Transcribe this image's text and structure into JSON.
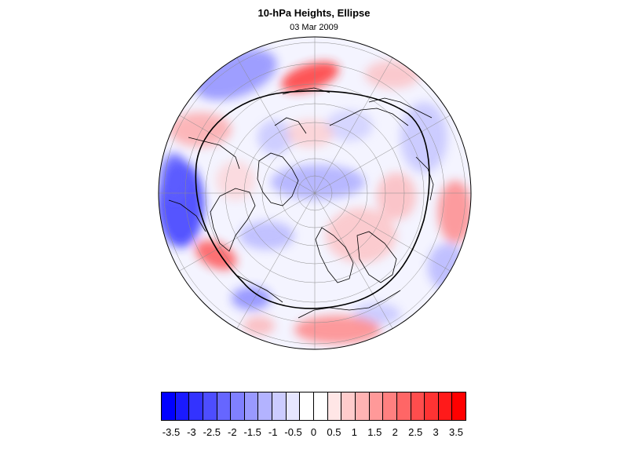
{
  "title": "10-hPa Heights, Ellipse",
  "subtitle": "03 Mar 2009",
  "colors": {
    "negative_max": "#0000ff",
    "neutral": "#ffffff",
    "positive_max": "#ff0000",
    "ellipse": "#000000",
    "coastline": "#000000",
    "graticule": "#8c8c8c"
  },
  "map": {
    "projection": "north-polar-stereographic",
    "features": [
      "coastlines",
      "graticule",
      "vortex-ellipse",
      "anomaly-shading"
    ]
  },
  "colorbar": {
    "colors": [
      "#0000ff",
      "#1a1aff",
      "#3333ff",
      "#4d4dff",
      "#6666ff",
      "#8080ff",
      "#9999ff",
      "#b3b3ff",
      "#ccccff",
      "#e6e6ff",
      "#ffffff",
      "#ffffff",
      "#ffe6e6",
      "#ffcccc",
      "#ffb3b3",
      "#ff9999",
      "#ff8080",
      "#ff6666",
      "#ff4d4d",
      "#ff3333",
      "#ff1a1a",
      "#ff0000"
    ],
    "labels": [
      "-3.5",
      "-3",
      "-2.5",
      "-2",
      "-1.5",
      "-1",
      "-0.5",
      "0",
      "0.5",
      "1",
      "1.5",
      "2",
      "2.5",
      "3",
      "3.5"
    ]
  }
}
